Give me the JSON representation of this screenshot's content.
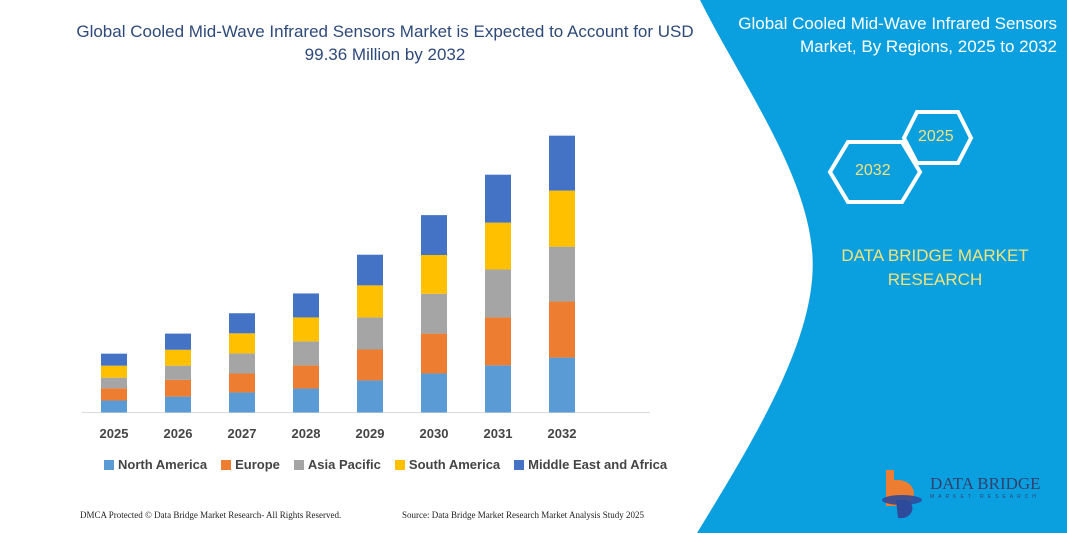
{
  "title": "Global Cooled Mid-Wave Infrared Sensors Market is Expected to Account for USD 99.36 Million by 2032",
  "side_panel": {
    "title": "Global Cooled Mid-Wave Infrared Sensors Market, By Regions, 2025 to 2032",
    "hex_start": "2025",
    "hex_end": "2032",
    "brand": "DATA BRIDGE MARKET RESEARCH",
    "logo_text": "DATA BRIDGE",
    "logo_sub": "MARKET RESEARCH",
    "color": "#0aa0df"
  },
  "footer": {
    "left": "DMCA Protected © Data Bridge Market Research- All Rights Reserved.",
    "right": "Source: Data Bridge Market Research Market Analysis Study 2025"
  },
  "chart_data": {
    "type": "bar",
    "stacked": true,
    "title": "Global Cooled Mid-Wave Infrared Sensors Market is Expected to Account for USD 99.36 Million by 2032",
    "categories": [
      "2025",
      "2026",
      "2027",
      "2028",
      "2029",
      "2030",
      "2031",
      "2032"
    ],
    "ylim": [
      0,
      99.36
    ],
    "grid": false,
    "legend_position": "bottom",
    "series": [
      {
        "name": "North America",
        "color": "#5b9bd5",
        "values": [
          4.3,
          5.7,
          7.2,
          8.6,
          11.5,
          14.0,
          16.9,
          19.7
        ]
      },
      {
        "name": "Europe",
        "color": "#ed7d31",
        "values": [
          4.4,
          6.0,
          6.8,
          8.3,
          11.1,
          14.3,
          17.2,
          20.1
        ]
      },
      {
        "name": "Asia Pacific",
        "color": "#a5a5a5",
        "values": [
          3.8,
          5.1,
          7.2,
          8.6,
          11.5,
          14.3,
          17.2,
          19.7
        ]
      },
      {
        "name": "South America",
        "color": "#ffc000",
        "values": [
          4.3,
          5.7,
          7.2,
          8.6,
          11.5,
          13.9,
          16.8,
          20.1
        ]
      },
      {
        "name": "Middle East and Africa",
        "color": "#4472c4",
        "values": [
          4.3,
          5.8,
          7.2,
          8.6,
          11.0,
          14.3,
          17.2,
          19.7
        ]
      }
    ]
  }
}
